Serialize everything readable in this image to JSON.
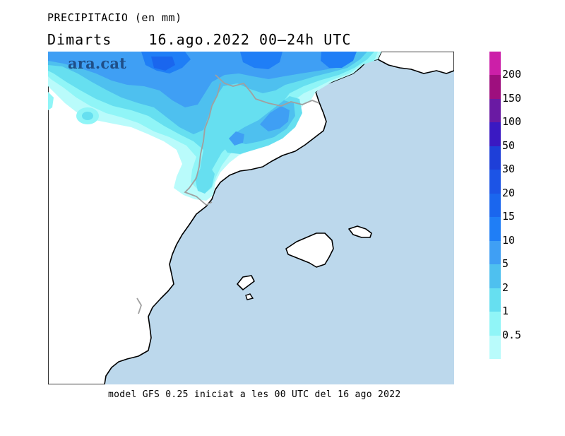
{
  "header": {
    "title": "PRECIPITACIO (en mm)",
    "subtitle": "Dimarts    16.ago.2022 00–24h UTC"
  },
  "logo": {
    "text": "ara.cat"
  },
  "footer": {
    "text": "model GFS 0.25 iniciat a les 00 UTC del 16 ago 2022"
  },
  "map": {
    "sea_color": "#bcd8ec",
    "land_color": "#ffffff",
    "coast_color": "#000000",
    "border_color": "#a0a0a0",
    "islands": [
      "Mallorca",
      "Menorca",
      "Eivissa",
      "Formentera"
    ]
  },
  "legend": {
    "labels": [
      "200",
      "150",
      "100",
      "50",
      "30",
      "20",
      "15",
      "10",
      "5",
      "2",
      "1",
      "0.5"
    ],
    "colors": [
      "#cc1fa8",
      "#9e0f7e",
      "#6a1aa3",
      "#3a19c2",
      "#1e3fd8",
      "#1c54e6",
      "#1a66ee",
      "#1f7ef6",
      "#3f9ff4",
      "#4ec0ef",
      "#66dff0",
      "#90f5f7",
      "#b9fbfb"
    ]
  }
}
